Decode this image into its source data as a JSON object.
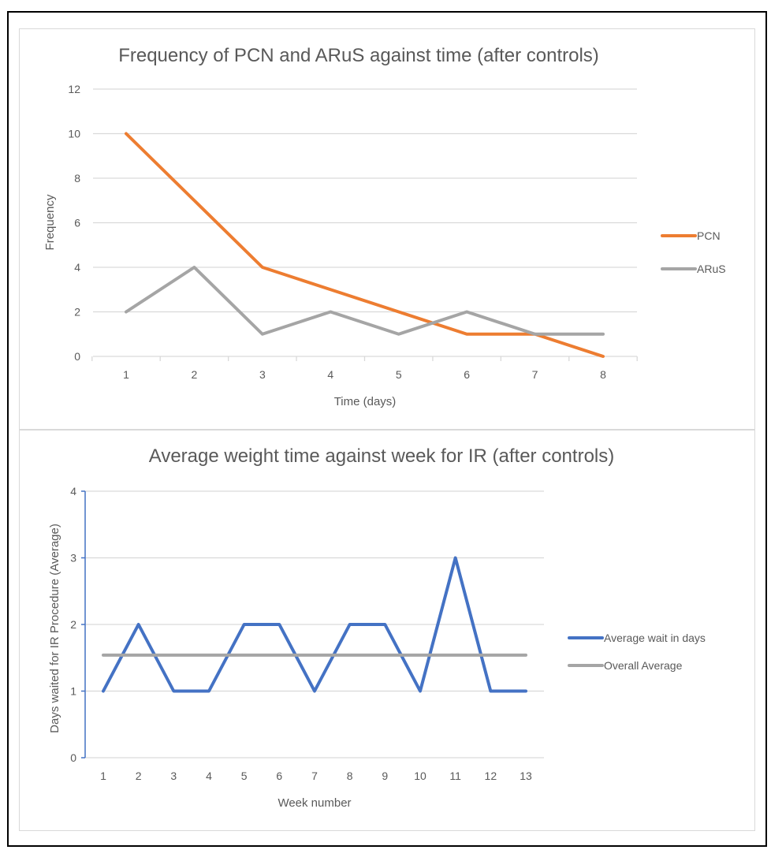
{
  "chart_data": [
    {
      "type": "line",
      "title": "Frequency of PCN and ARuS against time (after controls)",
      "xlabel": "Time (days)",
      "ylabel": "Frequency",
      "x": [
        1,
        2,
        3,
        4,
        5,
        6,
        7,
        8
      ],
      "ylim": [
        0,
        12
      ],
      "yticks": [
        0,
        2,
        4,
        6,
        8,
        10,
        12
      ],
      "grid": true,
      "legend_position": "right",
      "series": [
        {
          "name": "PCN",
          "color": "#ed7d31",
          "values": [
            10,
            7,
            4,
            3,
            2,
            1,
            1,
            0
          ]
        },
        {
          "name": "ARuS",
          "color": "#a5a5a5",
          "values": [
            2,
            4,
            1,
            2,
            1,
            2,
            1,
            1
          ]
        }
      ]
    },
    {
      "type": "line",
      "title": "Average weight time against week for IR (after controls)",
      "xlabel": "Week number",
      "ylabel": "Days waited for IR Procedure (Average)",
      "x": [
        1,
        2,
        3,
        4,
        5,
        6,
        7,
        8,
        9,
        10,
        11,
        12,
        13
      ],
      "ylim": [
        0,
        4
      ],
      "yticks": [
        0,
        1,
        2,
        3,
        4
      ],
      "grid": true,
      "legend_position": "right",
      "series": [
        {
          "name": "Average wait in days",
          "color": "#4472c4",
          "values": [
            1,
            2,
            1,
            1,
            2,
            2,
            1,
            2,
            2,
            1,
            3,
            1,
            1
          ]
        },
        {
          "name": "Overall Average",
          "color": "#a5a5a5",
          "values": [
            1.54,
            1.54,
            1.54,
            1.54,
            1.54,
            1.54,
            1.54,
            1.54,
            1.54,
            1.54,
            1.54,
            1.54,
            1.54
          ]
        }
      ]
    }
  ]
}
